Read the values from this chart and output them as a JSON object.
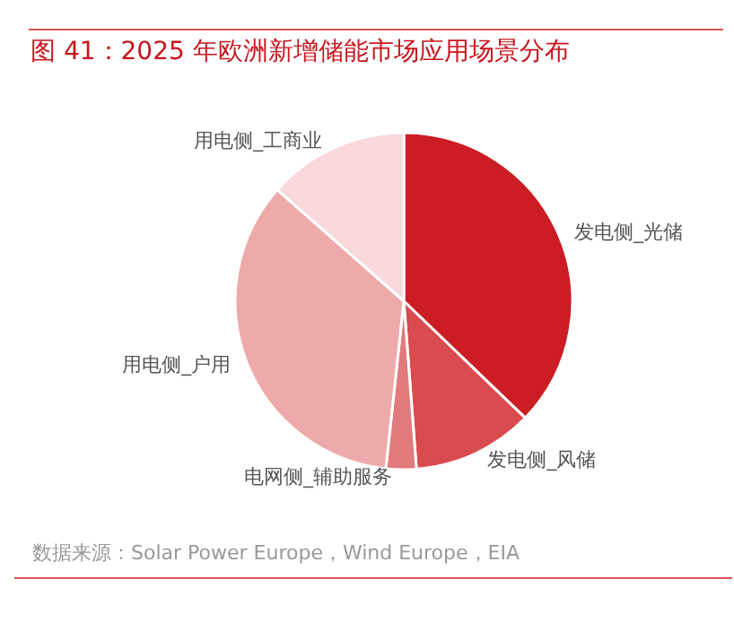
{
  "chart_data": {
    "type": "pie",
    "title": "图 41：2025 年欧洲新增储能市场应用场景分布",
    "categories": [
      "发电侧_光储",
      "发电侧_风储",
      "电网侧_辅助服务",
      "用电侧_户用",
      "用电侧_工商业"
    ],
    "values": [
      37.2,
      11.6,
      2.9,
      34.8,
      13.5
    ],
    "colors": [
      "#cc1d24",
      "#d94b4e",
      "#e07a7c",
      "#eeaaaa",
      "#f9d9db"
    ],
    "annotations": [
      "数据来源：Solar Power Europe，Wind Europe，EIA"
    ],
    "legend": false
  }
}
